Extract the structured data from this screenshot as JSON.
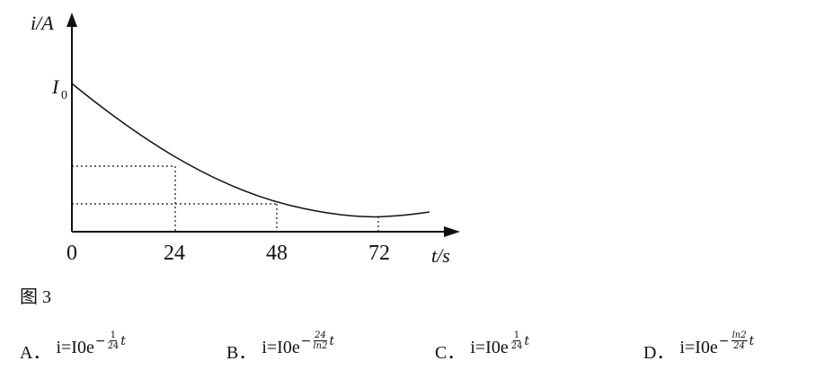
{
  "figure": {
    "y_label": "i/A",
    "x_label": "t/s",
    "i0_main": "I",
    "i0_sub": "0",
    "x_ticks": [
      0,
      24,
      48,
      72
    ]
  },
  "caption": "图 3",
  "options": [
    {
      "letter": "A．",
      "base": "i=I0e",
      "sign": "−",
      "num": "1",
      "den": "24",
      "var": "t"
    },
    {
      "letter": "B．",
      "base": "i=I0e",
      "sign": "−",
      "num": "24",
      "den": "ln2",
      "var": "t"
    },
    {
      "letter": "C．",
      "base": "i=I0e",
      "num": "1",
      "den": "24",
      "var": "t"
    },
    {
      "letter": "D．",
      "base": "i=I0e",
      "sign": "−",
      "num": "ln2",
      "den": "24",
      "var": "t"
    }
  ]
}
